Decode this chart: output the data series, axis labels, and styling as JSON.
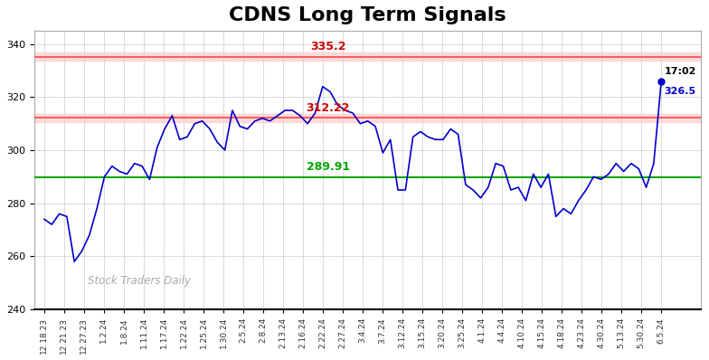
{
  "title": "CDNS Long Term Signals",
  "title_fontsize": 16,
  "title_fontweight": "bold",
  "watermark": "Stock Traders Daily",
  "hline_green": 289.91,
  "hline_red1": 312.22,
  "hline_red2": 335.2,
  "hline_red1_label": "312.22",
  "hline_red2_label": "335.2",
  "hline_green_label": "289.91",
  "last_label": "17:02",
  "last_value": "326.5",
  "ylim": [
    240,
    345
  ],
  "yticks": [
    240,
    260,
    280,
    300,
    320,
    340
  ],
  "background_color": "#ffffff",
  "grid_color": "#cccccc",
  "line_color": "#0000cc",
  "red_band_color": "#ffcccc",
  "red_line_color": "#ff4444",
  "green_line_color": "#00aa00",
  "green_label_color": "#00aa00",
  "red_label_color": "#cc0000",
  "x_labels": [
    "12.18.23",
    "12.21.23",
    "12.27.23",
    "1.2.24",
    "1.8.24",
    "1.11.24",
    "1.17.24",
    "1.22.24",
    "1.25.24",
    "1.30.24",
    "2.5.24",
    "2.8.24",
    "2.13.24",
    "2.16.24",
    "2.22.24",
    "2.27.24",
    "3.4.24",
    "3.7.24",
    "3.12.24",
    "3.15.24",
    "3.20.24",
    "3.25.24",
    "4.1.24",
    "4.4.24",
    "4.10.24",
    "4.15.24",
    "4.18.24",
    "4.23.24",
    "4.30.24",
    "5.13.24",
    "5.30.24",
    "6.5.24"
  ],
  "y_values": [
    274,
    272,
    276,
    275,
    258,
    262,
    268,
    278,
    290,
    294,
    292,
    291,
    295,
    294,
    289,
    301,
    308,
    313,
    304,
    305,
    310,
    311,
    308,
    303,
    300,
    315,
    309,
    308,
    311,
    312,
    311,
    313,
    315,
    315,
    313,
    310,
    314,
    324,
    322,
    317,
    315,
    314,
    310,
    311,
    309,
    299,
    304,
    285,
    285,
    305,
    307,
    305,
    304,
    304,
    308,
    306,
    287,
    285,
    282,
    286,
    295,
    294,
    285,
    286,
    281,
    291,
    286,
    291,
    275,
    278,
    276,
    281,
    285,
    290,
    289,
    291,
    295,
    292,
    295,
    293,
    286,
    295,
    326
  ]
}
